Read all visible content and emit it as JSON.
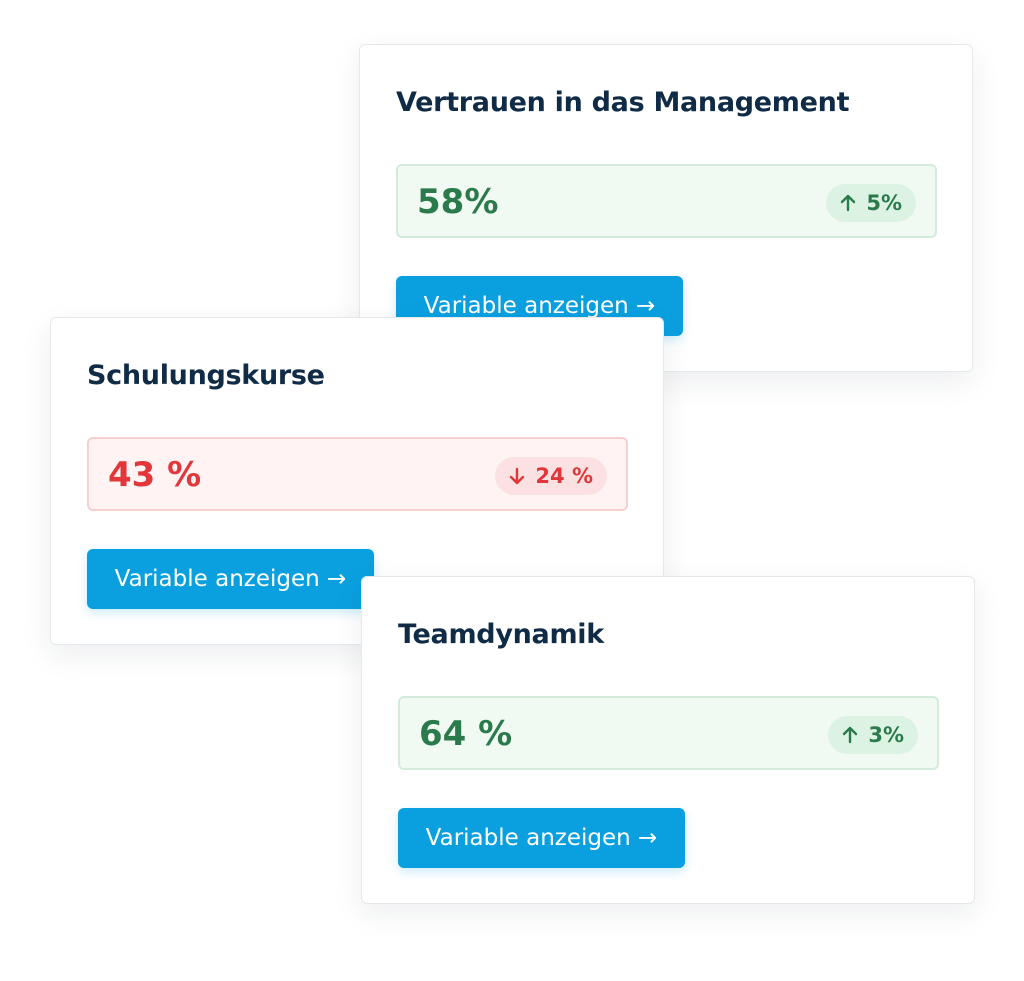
{
  "cards": [
    {
      "title": "Vertrauen in das Management",
      "value": "58%",
      "change": "5%",
      "trend": "up",
      "button": "Variable anzeigen →"
    },
    {
      "title": "Schulungskurse",
      "value": "43 %",
      "change": "24 %",
      "trend": "down",
      "button": "Variable anzeigen →"
    },
    {
      "title": "Teamdynamik",
      "value": "64 %",
      "change": "3%",
      "trend": "up",
      "button": "Variable anzeigen →"
    }
  ]
}
